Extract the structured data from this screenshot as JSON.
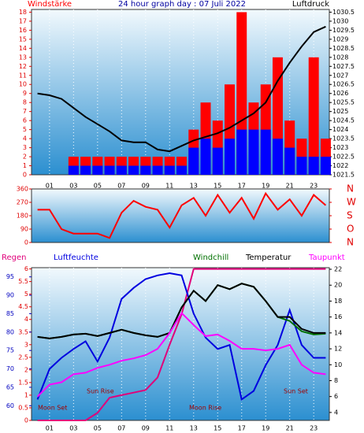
{
  "chart_data": [
    {
      "type": "bar",
      "title": "24 hour graph day : 07 Juli 2022",
      "x": [
        0,
        1,
        2,
        3,
        4,
        5,
        6,
        7,
        8,
        9,
        10,
        11,
        12,
        13,
        14,
        15,
        16,
        17,
        18,
        19,
        20,
        21,
        22,
        23,
        24
      ],
      "xlim": [
        -0.5,
        24.3
      ],
      "xticks": [
        {
          "value": 1,
          "label": "01"
        },
        {
          "value": 3,
          "label": "03"
        },
        {
          "value": 5,
          "label": "05"
        },
        {
          "value": 7,
          "label": "07"
        },
        {
          "value": 9,
          "label": "09"
        },
        {
          "value": 11,
          "label": "11"
        },
        {
          "value": 13,
          "label": "13"
        },
        {
          "value": 15,
          "label": "15"
        },
        {
          "value": 17,
          "label": "17"
        },
        {
          "value": 19,
          "label": "19"
        },
        {
          "value": 21,
          "label": "21"
        },
        {
          "value": 23,
          "label": "23"
        }
      ],
      "ylim": [
        0,
        18.3
      ],
      "yticks": [
        0,
        1,
        2,
        3,
        4,
        5,
        6,
        7,
        8,
        9,
        10,
        11,
        12,
        13,
        14,
        15,
        16,
        17,
        18
      ],
      "y2lim": [
        1021.5,
        1030.65
      ],
      "y2ticks": [
        1021.5,
        1022,
        1022.5,
        1023,
        1023.5,
        1024,
        1024.5,
        1025,
        1025.5,
        1026,
        1026.5,
        1027,
        1027.5,
        1028,
        1028.5,
        1029,
        1029.5,
        1030,
        1030.5
      ],
      "grid": true,
      "series": [
        {
          "name": "Windstärke",
          "type": "bar",
          "color": "#ff0000",
          "values": [
            0,
            0,
            0,
            2,
            2,
            2,
            2,
            2,
            2,
            2,
            2,
            2,
            2,
            5,
            8,
            6,
            10,
            18,
            8,
            10,
            13,
            6,
            4,
            13,
            4
          ]
        },
        {
          "type": "bar",
          "color": "#0000ff",
          "values": [
            0,
            0,
            0,
            1,
            1,
            1,
            1,
            1,
            1,
            1,
            1,
            1,
            1,
            3,
            4,
            3,
            4,
            5,
            5,
            5,
            4,
            3,
            2,
            2,
            2
          ]
        },
        {
          "name": "Luftdruck",
          "type": "line",
          "axis": "y2",
          "color": "#000000",
          "values": [
            1026,
            1025.9,
            1025.7,
            1025.2,
            1024.7,
            1024.3,
            1023.9,
            1023.4,
            1023.3,
            1023.3,
            1022.9,
            1022.8,
            1023.1,
            1023.4,
            1023.6,
            1023.8,
            1024.1,
            1024.5,
            1024.9,
            1025.5,
            1026.7,
            1027.7,
            1028.6,
            1029.4,
            1029.7
          ]
        }
      ]
    },
    {
      "type": "line",
      "x": [
        0,
        1,
        2,
        3,
        4,
        5,
        6,
        7,
        8,
        9,
        10,
        11,
        12,
        13,
        14,
        15,
        16,
        17,
        18,
        19,
        20,
        21,
        22,
        23,
        24
      ],
      "xlim": [
        -0.5,
        24.3
      ],
      "ylim": [
        0,
        360
      ],
      "yticks": [
        0,
        90,
        180,
        270,
        360
      ],
      "y2lim": [
        0,
        360
      ],
      "y2ticks": [
        {
          "value": 360,
          "label": "N"
        },
        {
          "value": 270,
          "label": "W"
        },
        {
          "value": 180,
          "label": "S"
        },
        {
          "value": 90,
          "label": "O"
        },
        {
          "value": 0,
          "label": "N"
        }
      ],
      "series": [
        {
          "color": "#ff0000",
          "values": [
            220,
            220,
            90,
            60,
            60,
            60,
            30,
            200,
            280,
            240,
            220,
            100,
            250,
            300,
            180,
            320,
            200,
            300,
            160,
            330,
            220,
            290,
            180,
            320,
            250
          ]
        }
      ]
    },
    {
      "type": "line",
      "x": [
        0,
        1,
        2,
        3,
        4,
        5,
        6,
        7,
        8,
        9,
        10,
        11,
        12,
        13,
        14,
        15,
        16,
        17,
        18,
        19,
        20,
        21,
        22,
        23,
        24
      ],
      "xlim": [
        -0.5,
        24.3
      ],
      "xticks": [
        {
          "value": 1,
          "label": "01"
        },
        {
          "value": 3,
          "label": "03"
        },
        {
          "value": 5,
          "label": "05"
        },
        {
          "value": 7,
          "label": "07"
        },
        {
          "value": 9,
          "label": "09"
        },
        {
          "value": 11,
          "label": "11"
        },
        {
          "value": 13,
          "label": "13"
        },
        {
          "value": 15,
          "label": "15"
        },
        {
          "value": 17,
          "label": "17"
        },
        {
          "value": 19,
          "label": "19"
        },
        {
          "value": 21,
          "label": "21"
        },
        {
          "value": 23,
          "label": "23"
        }
      ],
      "ylim": [
        0,
        6.05
      ],
      "yticks": [
        0,
        0.5,
        1,
        1.5,
        2,
        2.5,
        3,
        3.5,
        4,
        4.5,
        5,
        5.5,
        6
      ],
      "y2lim": [
        3,
        22.2
      ],
      "y2ticks": [
        4,
        6,
        8,
        10,
        12,
        14,
        16,
        18,
        20,
        22
      ],
      "y3lim": [
        56,
        97.5
      ],
      "y3ticks": [
        60,
        65,
        70,
        75,
        80,
        85,
        90,
        95
      ],
      "grid": true,
      "annotations": [
        "Moon Set",
        "Sun Rise",
        "Moon Rise",
        "Sun Set"
      ],
      "series": [
        {
          "name": "Regen",
          "axis": "y",
          "color": "#e0007a",
          "values": [
            0,
            0,
            0,
            0,
            0,
            0.3,
            0.9,
            1,
            1.1,
            1.2,
            1.7,
            3,
            4.2,
            6,
            6,
            6,
            6,
            6,
            6,
            6,
            6,
            6,
            6,
            6,
            6
          ]
        },
        {
          "name": "Luftfeuchte",
          "axis": "y3",
          "color": "#0000e0",
          "values": [
            61.7,
            70,
            73,
            75.4,
            77.5,
            72,
            78.5,
            89,
            92,
            94.4,
            95.4,
            96,
            95.4,
            85,
            78.5,
            75.4,
            76.5,
            61.7,
            64,
            71,
            76.5,
            86,
            76.5,
            73,
            73
          ]
        },
        {
          "name": "Windchill",
          "axis": "y2",
          "color": "#007000",
          "values": [
            13.5,
            13.3,
            13.5,
            13.8,
            13.9,
            13.6,
            14,
            14.4,
            14,
            13.7,
            13.5,
            14,
            17.2,
            19.3,
            18,
            20,
            19.5,
            20.2,
            19.8,
            18,
            16,
            15.5,
            14.2,
            13.8,
            13.9
          ]
        },
        {
          "name": "Temperatur",
          "axis": "y2",
          "color": "#000000",
          "values": [
            13.5,
            13.3,
            13.5,
            13.8,
            13.9,
            13.6,
            14,
            14.4,
            14,
            13.7,
            13.5,
            14,
            17.2,
            19.3,
            18,
            20,
            19.5,
            20.2,
            19.8,
            18,
            16,
            16,
            14.5,
            14,
            14
          ]
        },
        {
          "name": "Taupunkt",
          "axis": "y2",
          "color": "#ff00ff",
          "values": [
            6,
            7.5,
            7.8,
            8.8,
            9,
            9.6,
            10,
            10.5,
            10.8,
            11.2,
            12,
            14,
            16.5,
            15,
            13.6,
            13.8,
            13,
            12,
            12,
            11.8,
            12,
            12.5,
            10,
            9,
            8.8
          ]
        }
      ]
    }
  ]
}
